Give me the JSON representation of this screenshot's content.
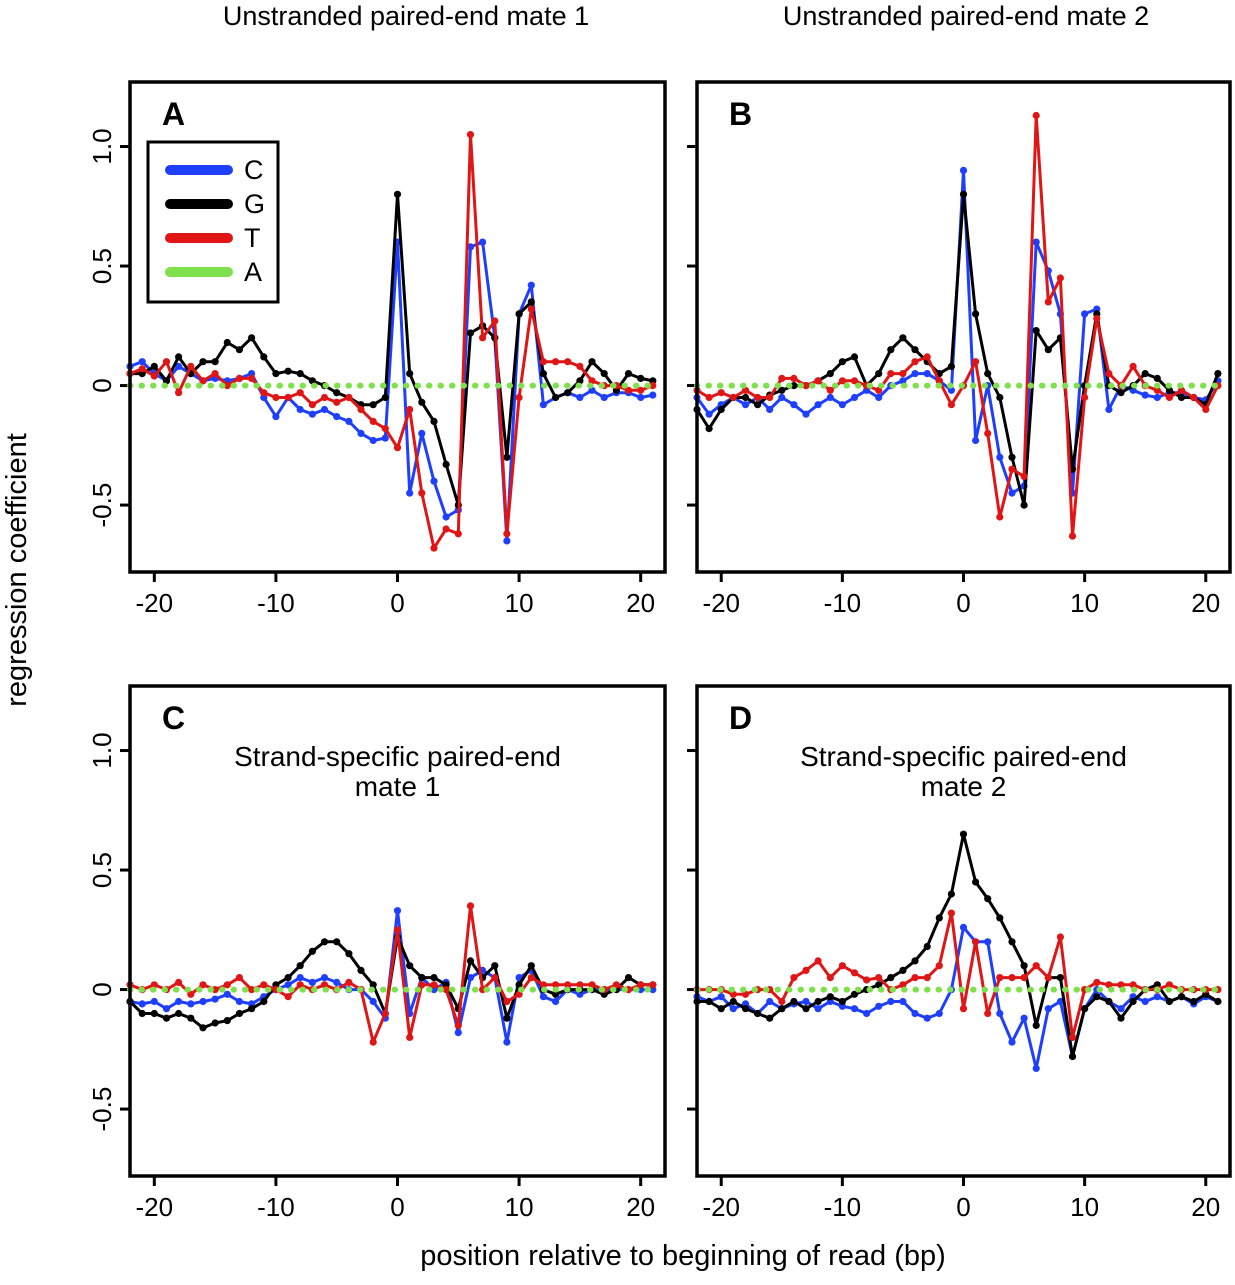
{
  "column_titles": [
    "Unstranded paired-end mate 1",
    "Unstranded paired-end mate 2"
  ],
  "xlabel": "position relative to beginning of read (bp)",
  "ylabel": "regression coefficient",
  "colors": {
    "C": "#1f3fff",
    "G": "#000000",
    "T": "#e01515",
    "A": "#7ee04a"
  },
  "chart_data": [
    {
      "type": "line",
      "panel": "A",
      "subtitle": [],
      "xlim": [
        -22,
        22
      ],
      "ylim": [
        -0.78,
        1.27
      ],
      "xticks": [
        -20,
        -10,
        0,
        10,
        20
      ],
      "yticks": [
        -0.5,
        0,
        0.5,
        1.0
      ],
      "xtick_labels": [
        "-20",
        "-10",
        "0",
        "10",
        "20"
      ],
      "ytick_labels": [
        "-0.5",
        "0",
        "0.5",
        "1.0"
      ],
      "legend": {
        "position": "top-left",
        "entries": [
          "C",
          "G",
          "T",
          "A"
        ]
      },
      "x": [
        -22,
        -21,
        -20,
        -19,
        -18,
        -17,
        -16,
        -15,
        -14,
        -13,
        -12,
        -11,
        -10,
        -9,
        -8,
        -7,
        -6,
        -5,
        -4,
        -3,
        -2,
        -1,
        0,
        1,
        2,
        3,
        4,
        5,
        6,
        7,
        8,
        9,
        10,
        11,
        12,
        13,
        14,
        15,
        16,
        17,
        18,
        19,
        20,
        21
      ],
      "series": [
        {
          "name": "C",
          "values": [
            0.08,
            0.1,
            0.05,
            0.02,
            0.08,
            0.05,
            0.02,
            0.03,
            0.02,
            0.03,
            0.05,
            -0.05,
            -0.13,
            -0.05,
            -0.1,
            -0.12,
            -0.1,
            -0.13,
            -0.15,
            -0.2,
            -0.23,
            -0.22,
            0.6,
            -0.45,
            -0.2,
            -0.4,
            -0.55,
            -0.52,
            0.58,
            0.6,
            0.2,
            -0.65,
            0.3,
            0.42,
            -0.08,
            -0.05,
            -0.03,
            -0.05,
            -0.02,
            -0.05,
            -0.03,
            -0.03,
            -0.05,
            -0.04
          ]
        },
        {
          "name": "G",
          "values": [
            0.05,
            0.05,
            0.08,
            0.02,
            0.12,
            0.05,
            0.1,
            0.1,
            0.18,
            0.15,
            0.2,
            0.12,
            0.05,
            0.06,
            0.05,
            0.02,
            0.0,
            -0.03,
            -0.05,
            -0.08,
            -0.08,
            -0.05,
            0.8,
            0.05,
            -0.07,
            -0.15,
            -0.33,
            -0.5,
            0.22,
            0.25,
            0.2,
            -0.3,
            0.3,
            0.35,
            0.05,
            -0.05,
            -0.03,
            0.02,
            0.1,
            0.05,
            -0.02,
            0.05,
            0.03,
            0.02
          ]
        },
        {
          "name": "T",
          "values": [
            0.05,
            0.07,
            0.04,
            0.1,
            -0.03,
            0.08,
            0.02,
            0.05,
            0.0,
            0.03,
            0.03,
            -0.03,
            -0.05,
            -0.05,
            -0.03,
            -0.08,
            -0.05,
            -0.07,
            -0.05,
            -0.1,
            -0.15,
            -0.18,
            -0.26,
            -0.1,
            -0.45,
            -0.68,
            -0.6,
            -0.62,
            1.05,
            0.2,
            0.27,
            -0.62,
            -0.05,
            0.32,
            0.1,
            0.1,
            0.1,
            0.08,
            0.02,
            0.0,
            0.0,
            -0.02,
            -0.02,
            0.0
          ]
        },
        {
          "name": "A",
          "values": [
            0,
            0,
            0,
            0,
            0,
            0,
            0,
            0,
            0,
            0,
            0,
            0,
            0,
            0,
            0,
            0,
            0,
            0,
            0,
            0,
            0,
            0,
            0,
            0,
            0,
            0,
            0,
            0,
            0,
            0,
            0,
            0,
            0,
            0,
            0,
            0,
            0,
            0,
            0,
            0,
            0,
            0,
            0,
            0
          ]
        }
      ]
    },
    {
      "type": "line",
      "panel": "B",
      "subtitle": [],
      "xlim": [
        -22,
        22
      ],
      "ylim": [
        -0.78,
        1.27
      ],
      "xticks": [
        -20,
        -10,
        0,
        10,
        20
      ],
      "yticks": [
        -0.5,
        0,
        0.5,
        1.0
      ],
      "xtick_labels": [
        "-20",
        "-10",
        "0",
        "10",
        "20"
      ],
      "ytick_labels": [
        "-0.5",
        "0",
        "0.5",
        "1.0"
      ],
      "x": [
        -22,
        -21,
        -20,
        -19,
        -18,
        -17,
        -16,
        -15,
        -14,
        -13,
        -12,
        -11,
        -10,
        -9,
        -8,
        -7,
        -6,
        -5,
        -4,
        -3,
        -2,
        -1,
        0,
        1,
        2,
        3,
        4,
        5,
        6,
        7,
        8,
        9,
        10,
        11,
        12,
        13,
        14,
        15,
        16,
        17,
        18,
        19,
        20,
        21
      ],
      "series": [
        {
          "name": "C",
          "values": [
            -0.05,
            -0.12,
            -0.08,
            -0.05,
            -0.08,
            -0.05,
            -0.1,
            -0.05,
            -0.08,
            -0.12,
            -0.08,
            -0.05,
            -0.08,
            -0.05,
            -0.02,
            -0.05,
            0.0,
            0.02,
            0.05,
            0.05,
            0.02,
            -0.02,
            0.9,
            -0.23,
            0.0,
            -0.3,
            -0.45,
            -0.42,
            0.6,
            0.48,
            0.3,
            -0.45,
            0.3,
            0.32,
            -0.1,
            0.0,
            -0.02,
            -0.04,
            -0.05,
            -0.03,
            -0.03,
            -0.05,
            -0.06,
            0.02
          ]
        },
        {
          "name": "G",
          "values": [
            -0.1,
            -0.18,
            -0.1,
            -0.05,
            -0.05,
            -0.08,
            -0.04,
            -0.02,
            0.0,
            0.0,
            0.02,
            0.05,
            0.1,
            0.12,
            0.0,
            0.05,
            0.15,
            0.2,
            0.15,
            0.1,
            0.05,
            0.08,
            0.8,
            0.3,
            0.05,
            -0.05,
            -0.3,
            -0.5,
            0.23,
            0.15,
            0.2,
            -0.35,
            0.0,
            0.3,
            0.0,
            -0.03,
            0.0,
            0.05,
            0.03,
            -0.02,
            -0.05,
            -0.05,
            -0.08,
            0.05
          ]
        },
        {
          "name": "T",
          "values": [
            -0.02,
            -0.05,
            -0.03,
            -0.05,
            -0.02,
            -0.05,
            -0.05,
            0.03,
            0.03,
            0.0,
            0.02,
            -0.02,
            0.02,
            0.02,
            0.0,
            -0.02,
            0.05,
            0.05,
            0.1,
            0.12,
            0.02,
            -0.08,
            0.0,
            0.1,
            -0.2,
            -0.55,
            -0.35,
            -0.38,
            1.13,
            0.35,
            0.45,
            -0.63,
            -0.05,
            0.28,
            0.05,
            0.0,
            0.08,
            0.0,
            -0.02,
            -0.05,
            -0.02,
            -0.05,
            -0.1,
            0.0
          ]
        },
        {
          "name": "A",
          "values": [
            0,
            0,
            0,
            0,
            0,
            0,
            0,
            0,
            0,
            0,
            0,
            0,
            0,
            0,
            0,
            0,
            0,
            0,
            0,
            0,
            0,
            0,
            0,
            0,
            0,
            0,
            0,
            0,
            0,
            0,
            0,
            0,
            0,
            0,
            0,
            0,
            0,
            0,
            0,
            0,
            0,
            0,
            0,
            0
          ]
        }
      ]
    },
    {
      "type": "line",
      "panel": "C",
      "subtitle": [
        "Strand-specific paired-end",
        "mate 1"
      ],
      "xlim": [
        -22,
        22
      ],
      "ylim": [
        -0.78,
        1.27
      ],
      "xticks": [
        -20,
        -10,
        0,
        10,
        20
      ],
      "yticks": [
        -0.5,
        0,
        0.5,
        1.0
      ],
      "xtick_labels": [
        "-20",
        "-10",
        "0",
        "10",
        "20"
      ],
      "ytick_labels": [
        "-0.5",
        "0",
        "0.5",
        "1.0"
      ],
      "x": [
        -22,
        -21,
        -20,
        -19,
        -18,
        -17,
        -16,
        -15,
        -14,
        -13,
        -12,
        -11,
        -10,
        -9,
        -8,
        -7,
        -6,
        -5,
        -4,
        -3,
        -2,
        -1,
        0,
        1,
        2,
        3,
        4,
        5,
        6,
        7,
        8,
        9,
        10,
        11,
        12,
        13,
        14,
        15,
        16,
        17,
        18,
        19,
        20,
        21
      ],
      "series": [
        {
          "name": "C",
          "values": [
            -0.05,
            -0.06,
            -0.05,
            -0.08,
            -0.05,
            -0.06,
            -0.05,
            -0.04,
            -0.02,
            -0.05,
            -0.06,
            -0.03,
            0.0,
            0.02,
            0.05,
            0.03,
            0.05,
            0.03,
            0.0,
            0.0,
            -0.05,
            -0.12,
            0.33,
            -0.1,
            0.05,
            0.0,
            0.03,
            -0.18,
            0.05,
            0.08,
            0.05,
            -0.22,
            0.05,
            0.08,
            -0.03,
            -0.05,
            0.0,
            -0.02,
            0.0,
            0.0,
            0.0,
            0.0,
            0.0,
            0.0
          ]
        },
        {
          "name": "G",
          "values": [
            -0.05,
            -0.1,
            -0.1,
            -0.12,
            -0.1,
            -0.12,
            -0.16,
            -0.14,
            -0.13,
            -0.1,
            -0.08,
            -0.05,
            0.02,
            0.05,
            0.1,
            0.16,
            0.2,
            0.2,
            0.15,
            0.08,
            0.02,
            -0.1,
            0.22,
            0.1,
            0.05,
            0.05,
            0.02,
            -0.08,
            0.12,
            0.05,
            0.1,
            -0.12,
            0.02,
            0.1,
            0.0,
            -0.02,
            0.0,
            0.0,
            0.0,
            -0.02,
            0.0,
            0.05,
            0.02,
            0.02
          ]
        },
        {
          "name": "T",
          "values": [
            0.02,
            0.0,
            0.02,
            0.0,
            0.03,
            -0.02,
            0.02,
            0.0,
            0.02,
            0.05,
            0.0,
            0.02,
            0.0,
            -0.03,
            0.02,
            0.0,
            0.02,
            0.0,
            0.03,
            0.0,
            -0.22,
            -0.1,
            0.25,
            -0.2,
            0.02,
            0.02,
            0.0,
            -0.15,
            0.35,
            0.0,
            0.05,
            -0.05,
            -0.02,
            0.05,
            0.02,
            0.02,
            0.02,
            0.02,
            0.02,
            0.0,
            0.02,
            0.0,
            0.02,
            0.02
          ]
        },
        {
          "name": "A",
          "values": [
            0,
            0,
            0,
            0,
            0,
            0,
            0,
            0,
            0,
            0,
            0,
            0,
            0,
            0,
            0,
            0,
            0,
            0,
            0,
            0,
            0,
            0,
            0,
            0,
            0,
            0,
            0,
            0,
            0,
            0,
            0,
            0,
            0,
            0,
            0,
            0,
            0,
            0,
            0,
            0,
            0,
            0,
            0,
            0
          ]
        }
      ]
    },
    {
      "type": "line",
      "panel": "D",
      "subtitle": [
        "Strand-specific paired-end",
        "mate 2"
      ],
      "xlim": [
        -22,
        22
      ],
      "ylim": [
        -0.78,
        1.27
      ],
      "xticks": [
        -20,
        -10,
        0,
        10,
        20
      ],
      "yticks": [
        -0.5,
        0,
        0.5,
        1.0
      ],
      "xtick_labels": [
        "-20",
        "-10",
        "0",
        "10",
        "20"
      ],
      "ytick_labels": [
        "-0.5",
        "0",
        "0.5",
        "1.0"
      ],
      "x": [
        -22,
        -21,
        -20,
        -19,
        -18,
        -17,
        -16,
        -15,
        -14,
        -13,
        -12,
        -11,
        -10,
        -9,
        -8,
        -7,
        -6,
        -5,
        -4,
        -3,
        -2,
        -1,
        0,
        1,
        2,
        3,
        4,
        5,
        6,
        7,
        8,
        9,
        10,
        11,
        12,
        13,
        14,
        15,
        16,
        17,
        18,
        19,
        20,
        21
      ],
      "series": [
        {
          "name": "C",
          "values": [
            -0.03,
            -0.05,
            -0.03,
            -0.08,
            -0.06,
            -0.1,
            -0.05,
            -0.08,
            -0.06,
            -0.05,
            -0.08,
            -0.05,
            -0.07,
            -0.08,
            -0.1,
            -0.07,
            -0.05,
            -0.05,
            -0.1,
            -0.12,
            -0.1,
            0.0,
            0.26,
            0.2,
            0.2,
            -0.1,
            -0.22,
            -0.12,
            -0.33,
            -0.08,
            -0.05,
            -0.28,
            -0.08,
            0.0,
            -0.05,
            -0.08,
            -0.03,
            -0.05,
            -0.03,
            -0.05,
            -0.03,
            -0.06,
            -0.03,
            -0.05
          ]
        },
        {
          "name": "G",
          "values": [
            -0.05,
            -0.05,
            -0.08,
            -0.05,
            -0.08,
            -0.1,
            -0.12,
            -0.08,
            -0.05,
            -0.08,
            -0.05,
            -0.03,
            -0.05,
            -0.02,
            0.0,
            0.02,
            0.05,
            0.08,
            0.12,
            0.18,
            0.3,
            0.4,
            0.65,
            0.45,
            0.38,
            0.3,
            0.2,
            0.1,
            -0.15,
            0.05,
            0.05,
            -0.28,
            -0.08,
            -0.03,
            -0.05,
            -0.12,
            -0.05,
            0.0,
            0.02,
            -0.05,
            -0.03,
            -0.05,
            -0.02,
            -0.05
          ]
        },
        {
          "name": "T",
          "values": [
            0.0,
            0.0,
            0.0,
            -0.02,
            -0.02,
            0.0,
            0.0,
            -0.05,
            0.05,
            0.08,
            0.12,
            0.05,
            0.1,
            0.07,
            0.04,
            0.05,
            0.0,
            0.02,
            0.05,
            0.05,
            0.1,
            0.32,
            -0.08,
            0.2,
            -0.1,
            0.05,
            0.05,
            0.05,
            0.1,
            0.05,
            0.22,
            -0.2,
            0.0,
            0.03,
            0.02,
            0.02,
            0.02,
            0.0,
            0.0,
            0.02,
            0.0,
            0.0,
            0.0,
            0.0
          ]
        },
        {
          "name": "A",
          "values": [
            0,
            0,
            0,
            0,
            0,
            0,
            0,
            0,
            0,
            0,
            0,
            0,
            0,
            0,
            0,
            0,
            0,
            0,
            0,
            0,
            0,
            0,
            0,
            0,
            0,
            0,
            0,
            0,
            0,
            0,
            0,
            0,
            0,
            0,
            0,
            0,
            0,
            0,
            0,
            0,
            0,
            0,
            0,
            0
          ]
        }
      ]
    }
  ]
}
